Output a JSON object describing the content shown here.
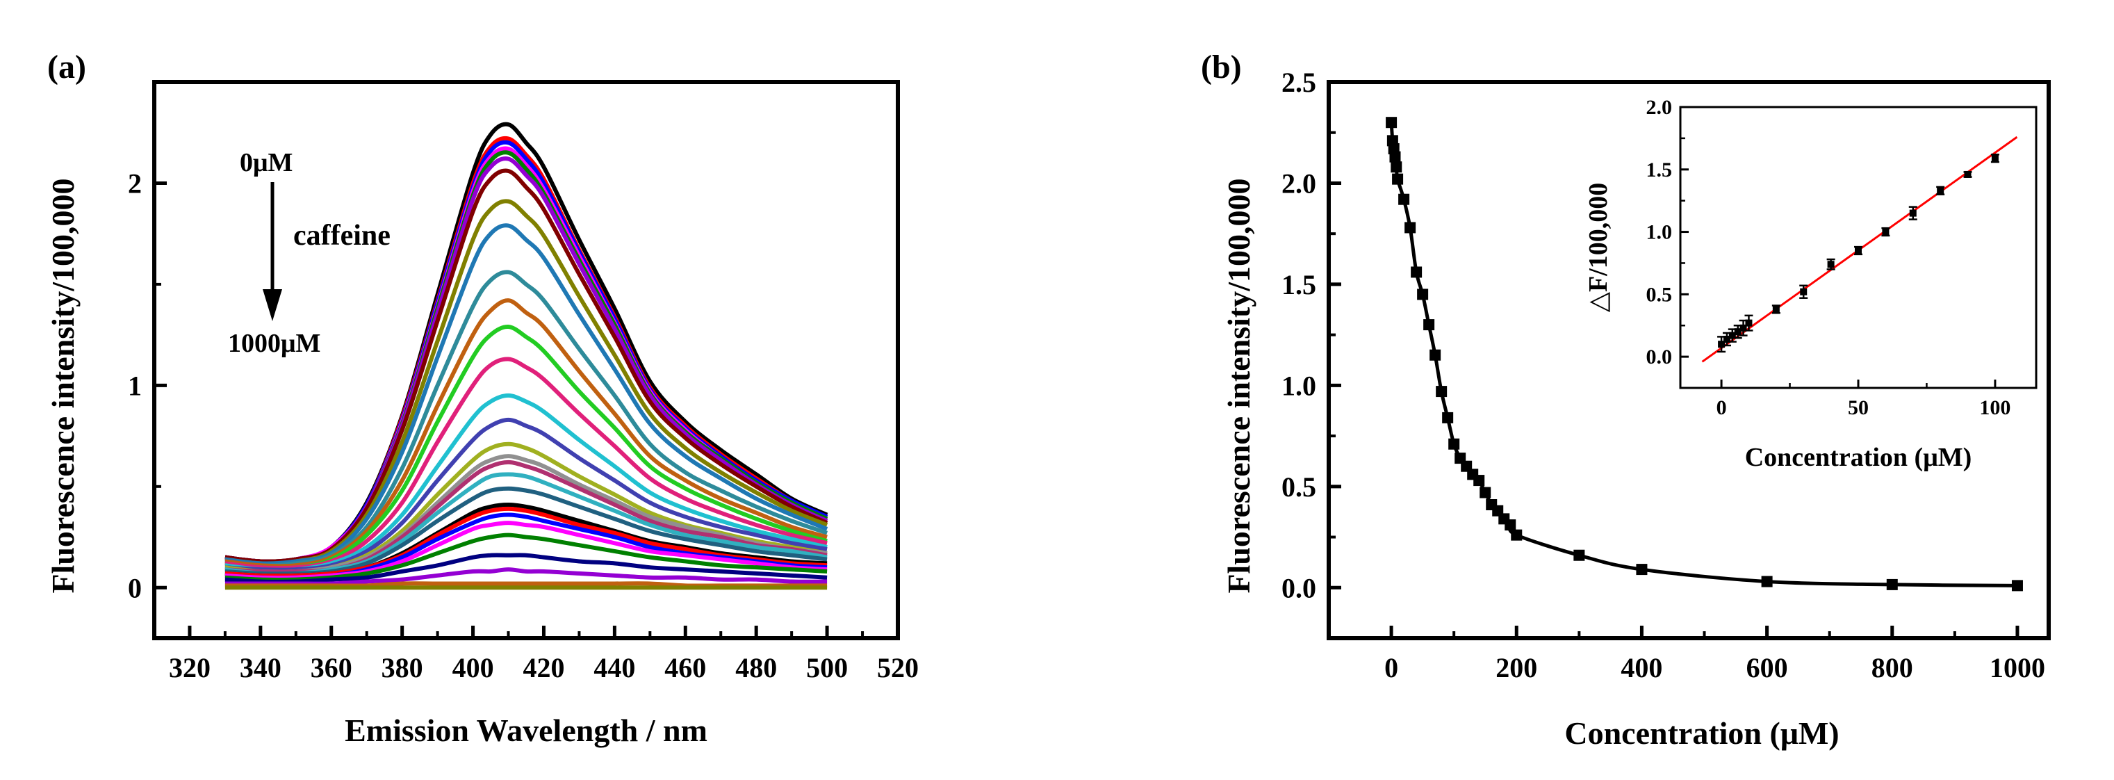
{
  "panel_a": {
    "label": "(a)",
    "annotation_top": "0μM",
    "annotation_mid": "caffeine",
    "annotation_bottom": "1000μM"
  },
  "panel_b": {
    "label": "(b)"
  },
  "chart_data": [
    {
      "type": "line",
      "xlabel": "Emission Wavelength / nm",
      "ylabel": "Fluorescence intensity/100,000",
      "xlim": [
        310,
        520
      ],
      "ylim": [
        -0.25,
        2.5
      ],
      "xticks": [
        "320",
        "340",
        "360",
        "380",
        "400",
        "420",
        "440",
        "460",
        "480",
        "500",
        "520"
      ],
      "yticks": [
        "0",
        "1",
        "2"
      ],
      "grid": false,
      "x": [
        330,
        340,
        350,
        360,
        370,
        380,
        390,
        400,
        405,
        410,
        415,
        420,
        430,
        440,
        450,
        460,
        470,
        480,
        490,
        500
      ],
      "series": [
        {
          "color": "#000000",
          "values": [
            0.15,
            0.13,
            0.14,
            0.2,
            0.42,
            0.85,
            1.45,
            2.05,
            2.24,
            2.29,
            2.2,
            2.08,
            1.72,
            1.38,
            1.02,
            0.82,
            0.68,
            0.56,
            0.44,
            0.36
          ]
        },
        {
          "color": "#ff0000",
          "values": [
            0.15,
            0.13,
            0.14,
            0.2,
            0.41,
            0.84,
            1.42,
            2.0,
            2.18,
            2.22,
            2.14,
            2.02,
            1.67,
            1.34,
            0.99,
            0.8,
            0.66,
            0.54,
            0.43,
            0.35
          ]
        },
        {
          "color": "#0000ff",
          "values": [
            0.15,
            0.13,
            0.14,
            0.2,
            0.41,
            0.83,
            1.41,
            1.98,
            2.16,
            2.2,
            2.12,
            2.0,
            1.66,
            1.33,
            0.98,
            0.79,
            0.65,
            0.53,
            0.43,
            0.35
          ]
        },
        {
          "color": "#ff00ff",
          "values": [
            0.15,
            0.13,
            0.14,
            0.2,
            0.4,
            0.82,
            1.39,
            1.96,
            2.13,
            2.17,
            2.09,
            1.97,
            1.64,
            1.31,
            0.97,
            0.78,
            0.64,
            0.52,
            0.42,
            0.34
          ]
        },
        {
          "color": "#008000",
          "values": [
            0.15,
            0.13,
            0.14,
            0.19,
            0.4,
            0.81,
            1.38,
            1.94,
            2.11,
            2.15,
            2.07,
            1.95,
            1.62,
            1.3,
            0.96,
            0.77,
            0.64,
            0.52,
            0.42,
            0.34
          ]
        },
        {
          "color": "#9400d3",
          "values": [
            0.15,
            0.13,
            0.14,
            0.19,
            0.4,
            0.8,
            1.36,
            1.92,
            2.08,
            2.12,
            2.04,
            1.93,
            1.6,
            1.28,
            0.95,
            0.76,
            0.63,
            0.51,
            0.41,
            0.33
          ]
        },
        {
          "color": "#800000",
          "values": [
            0.15,
            0.13,
            0.14,
            0.19,
            0.39,
            0.78,
            1.32,
            1.86,
            2.02,
            2.06,
            1.98,
            1.87,
            1.55,
            1.24,
            0.92,
            0.74,
            0.61,
            0.5,
            0.4,
            0.32
          ]
        },
        {
          "color": "#808000",
          "values": [
            0.14,
            0.12,
            0.13,
            0.18,
            0.36,
            0.72,
            1.22,
            1.72,
            1.87,
            1.91,
            1.84,
            1.74,
            1.44,
            1.15,
            0.86,
            0.69,
            0.57,
            0.47,
            0.38,
            0.31
          ]
        },
        {
          "color": "#1f78b4",
          "values": [
            0.14,
            0.12,
            0.13,
            0.17,
            0.34,
            0.67,
            1.14,
            1.6,
            1.75,
            1.79,
            1.72,
            1.63,
            1.35,
            1.08,
            0.81,
            0.65,
            0.54,
            0.44,
            0.36,
            0.29
          ]
        },
        {
          "color": "#2e8b9a",
          "values": [
            0.13,
            0.11,
            0.12,
            0.16,
            0.3,
            0.59,
            1.0,
            1.39,
            1.52,
            1.56,
            1.5,
            1.42,
            1.18,
            0.95,
            0.71,
            0.57,
            0.48,
            0.4,
            0.33,
            0.27
          ]
        },
        {
          "color": "#c06010",
          "values": [
            0.13,
            0.11,
            0.11,
            0.15,
            0.28,
            0.53,
            0.9,
            1.25,
            1.37,
            1.42,
            1.36,
            1.29,
            1.07,
            0.86,
            0.65,
            0.53,
            0.44,
            0.37,
            0.3,
            0.25
          ]
        },
        {
          "color": "#22cc22",
          "values": [
            0.12,
            0.1,
            0.1,
            0.14,
            0.26,
            0.48,
            0.82,
            1.14,
            1.25,
            1.29,
            1.24,
            1.17,
            0.97,
            0.79,
            0.6,
            0.49,
            0.41,
            0.34,
            0.28,
            0.23
          ]
        },
        {
          "color": "#e0207a",
          "values": [
            0.12,
            0.1,
            0.1,
            0.13,
            0.23,
            0.42,
            0.72,
            1.0,
            1.1,
            1.13,
            1.09,
            1.03,
            0.86,
            0.7,
            0.54,
            0.44,
            0.37,
            0.31,
            0.26,
            0.22
          ]
        },
        {
          "color": "#20c0d0",
          "values": [
            0.11,
            0.09,
            0.09,
            0.12,
            0.2,
            0.36,
            0.6,
            0.84,
            0.92,
            0.95,
            0.92,
            0.87,
            0.73,
            0.6,
            0.47,
            0.39,
            0.33,
            0.28,
            0.24,
            0.2
          ]
        },
        {
          "color": "#4040b0",
          "values": [
            0.1,
            0.09,
            0.09,
            0.11,
            0.18,
            0.32,
            0.53,
            0.73,
            0.8,
            0.83,
            0.8,
            0.76,
            0.64,
            0.53,
            0.42,
            0.35,
            0.3,
            0.26,
            0.22,
            0.19
          ]
        },
        {
          "color": "#a0b020",
          "values": [
            0.1,
            0.08,
            0.08,
            0.1,
            0.16,
            0.28,
            0.46,
            0.63,
            0.69,
            0.71,
            0.69,
            0.65,
            0.55,
            0.46,
            0.37,
            0.31,
            0.27,
            0.23,
            0.2,
            0.17
          ]
        },
        {
          "color": "#909090",
          "values": [
            0.09,
            0.08,
            0.08,
            0.1,
            0.15,
            0.26,
            0.42,
            0.58,
            0.63,
            0.65,
            0.63,
            0.6,
            0.51,
            0.43,
            0.35,
            0.3,
            0.26,
            0.22,
            0.19,
            0.17
          ]
        },
        {
          "color": "#b03070",
          "values": [
            0.09,
            0.08,
            0.08,
            0.09,
            0.14,
            0.25,
            0.4,
            0.55,
            0.6,
            0.62,
            0.6,
            0.57,
            0.49,
            0.41,
            0.33,
            0.28,
            0.25,
            0.21,
            0.19,
            0.16
          ]
        },
        {
          "color": "#30b0c0",
          "values": [
            0.09,
            0.07,
            0.07,
            0.09,
            0.13,
            0.23,
            0.37,
            0.5,
            0.55,
            0.56,
            0.55,
            0.52,
            0.45,
            0.38,
            0.31,
            0.26,
            0.23,
            0.2,
            0.18,
            0.15
          ]
        },
        {
          "color": "#206080",
          "values": [
            0.08,
            0.07,
            0.07,
            0.08,
            0.12,
            0.21,
            0.33,
            0.44,
            0.48,
            0.49,
            0.48,
            0.46,
            0.4,
            0.34,
            0.28,
            0.24,
            0.21,
            0.18,
            0.16,
            0.14
          ]
        },
        {
          "color": "#000000",
          "values": [
            0.07,
            0.06,
            0.06,
            0.07,
            0.1,
            0.17,
            0.27,
            0.37,
            0.4,
            0.41,
            0.4,
            0.38,
            0.33,
            0.28,
            0.23,
            0.2,
            0.17,
            0.15,
            0.13,
            0.12
          ]
        },
        {
          "color": "#ff0000",
          "values": [
            0.07,
            0.06,
            0.06,
            0.07,
            0.1,
            0.16,
            0.26,
            0.35,
            0.38,
            0.39,
            0.38,
            0.36,
            0.31,
            0.27,
            0.22,
            0.19,
            0.16,
            0.14,
            0.12,
            0.11
          ]
        },
        {
          "color": "#0000ff",
          "values": [
            0.06,
            0.05,
            0.05,
            0.06,
            0.09,
            0.15,
            0.24,
            0.32,
            0.35,
            0.36,
            0.35,
            0.33,
            0.29,
            0.25,
            0.2,
            0.17,
            0.15,
            0.13,
            0.11,
            0.1
          ]
        },
        {
          "color": "#ff00ff",
          "values": [
            0.06,
            0.05,
            0.05,
            0.06,
            0.08,
            0.13,
            0.21,
            0.29,
            0.31,
            0.32,
            0.31,
            0.3,
            0.26,
            0.22,
            0.18,
            0.16,
            0.14,
            0.12,
            0.1,
            0.09
          ]
        },
        {
          "color": "#008000",
          "values": [
            0.05,
            0.04,
            0.04,
            0.05,
            0.07,
            0.11,
            0.17,
            0.23,
            0.25,
            0.26,
            0.25,
            0.24,
            0.21,
            0.18,
            0.15,
            0.13,
            0.11,
            0.1,
            0.09,
            0.08
          ]
        },
        {
          "color": "#000080",
          "values": [
            0.04,
            0.03,
            0.03,
            0.04,
            0.05,
            0.08,
            0.11,
            0.15,
            0.16,
            0.16,
            0.16,
            0.15,
            0.13,
            0.12,
            0.1,
            0.09,
            0.08,
            0.07,
            0.06,
            0.05
          ]
        },
        {
          "color": "#9400d3",
          "values": [
            0.02,
            0.02,
            0.02,
            0.02,
            0.03,
            0.04,
            0.06,
            0.08,
            0.08,
            0.09,
            0.08,
            0.08,
            0.07,
            0.06,
            0.05,
            0.05,
            0.04,
            0.04,
            0.03,
            0.03
          ]
        },
        {
          "color": "#c06010",
          "values": [
            0.01,
            0.01,
            0.01,
            0.01,
            0.01,
            0.02,
            0.02,
            0.02,
            0.02,
            0.02,
            0.02,
            0.02,
            0.02,
            0.02,
            0.02,
            0.01,
            0.01,
            0.01,
            0.01,
            0.01
          ]
        },
        {
          "color": "#808000",
          "values": [
            0.0,
            0.0,
            0.0,
            0.0,
            0.0,
            0.0,
            0.0,
            0.0,
            0.0,
            0.0,
            0.0,
            0.0,
            0.0,
            0.0,
            0.0,
            0.0,
            0.0,
            0.0,
            0.0,
            0.0
          ]
        }
      ]
    },
    {
      "type": "line",
      "xlabel": "Concentration (μM)",
      "ylabel": "Fluorescence intensity/100,000",
      "xlim": [
        -100,
        1050
      ],
      "ylim": [
        -0.25,
        2.5
      ],
      "xticks": [
        "0",
        "200",
        "400",
        "600",
        "800",
        "1000"
      ],
      "yticks": [
        "0.0",
        "0.5",
        "1.0",
        "1.5",
        "2.0",
        "2.5"
      ],
      "grid": false,
      "series": [
        {
          "marker": "square",
          "color": "#000000",
          "x": [
            0,
            2,
            4,
            6,
            8,
            10,
            20,
            30,
            40,
            50,
            60,
            70,
            80,
            90,
            100,
            110,
            120,
            130,
            140,
            150,
            160,
            170,
            180,
            190,
            200,
            300,
            400,
            600,
            800,
            1000
          ],
          "y": [
            2.3,
            2.21,
            2.17,
            2.13,
            2.08,
            2.02,
            1.92,
            1.78,
            1.56,
            1.45,
            1.3,
            1.15,
            0.97,
            0.84,
            0.71,
            0.64,
            0.6,
            0.56,
            0.53,
            0.47,
            0.41,
            0.38,
            0.34,
            0.31,
            0.26,
            0.16,
            0.09,
            0.03,
            0.015,
            0.01
          ]
        }
      ]
    },
    {
      "type": "scatter",
      "xlabel": "Concentration (μM)",
      "ylabel": "△F/100,000",
      "xlim": [
        -15,
        115
      ],
      "ylim": [
        -0.25,
        2.0
      ],
      "xticks": [
        "0",
        "50",
        "100"
      ],
      "yticks": [
        "0.0",
        "0.5",
        "1.0",
        "1.5",
        "2.0"
      ],
      "grid": false,
      "series": [
        {
          "marker": "square",
          "color": "#000000",
          "x": [
            0,
            2,
            4,
            6,
            8,
            10,
            20,
            30,
            40,
            50,
            60,
            70,
            80,
            90,
            100
          ],
          "y": [
            0.1,
            0.14,
            0.17,
            0.2,
            0.23,
            0.27,
            0.38,
            0.52,
            0.74,
            0.85,
            1.0,
            1.15,
            1.33,
            1.46,
            1.59
          ],
          "error": [
            0.06,
            0.05,
            0.05,
            0.05,
            0.06,
            0.06,
            0.03,
            0.05,
            0.04,
            0.03,
            0.03,
            0.05,
            0.03,
            0.02,
            0.03
          ]
        },
        {
          "type": "fit-line",
          "color": "#ff0000",
          "x": [
            -7,
            108
          ],
          "y": [
            -0.04,
            1.76
          ]
        }
      ]
    }
  ]
}
